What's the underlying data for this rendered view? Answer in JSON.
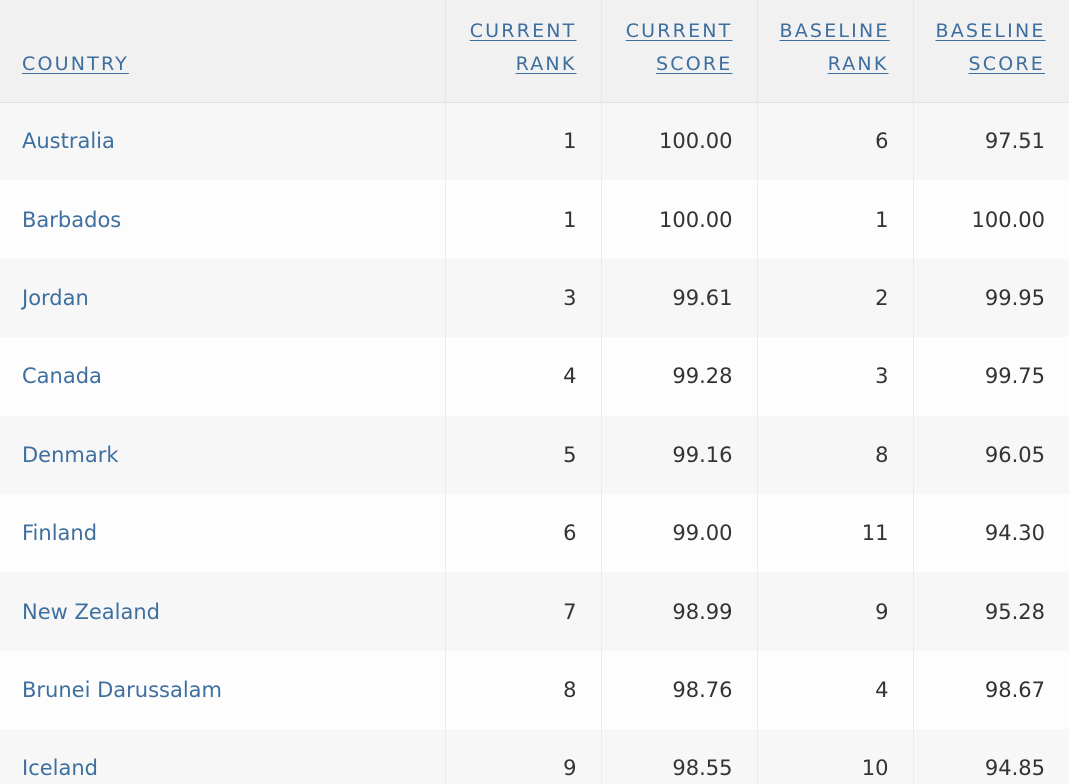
{
  "table": {
    "headers": {
      "country": "COUNTRY",
      "current_rank_l1": "CURRENT",
      "current_rank_l2": "RANK",
      "current_score_l1": "CURRENT",
      "current_score_l2": "SCORE",
      "baseline_rank_l1": "BASELINE",
      "baseline_rank_l2": "RANK",
      "baseline_score_l1": "BASELINE",
      "baseline_score_l2": "SCORE"
    },
    "rows": [
      {
        "country": "Australia",
        "current_rank": "1",
        "current_score": "100.00",
        "baseline_rank": "6",
        "baseline_score": "97.51"
      },
      {
        "country": "Barbados",
        "current_rank": "1",
        "current_score": "100.00",
        "baseline_rank": "1",
        "baseline_score": "100.00"
      },
      {
        "country": "Jordan",
        "current_rank": "3",
        "current_score": "99.61",
        "baseline_rank": "2",
        "baseline_score": "99.95"
      },
      {
        "country": "Canada",
        "current_rank": "4",
        "current_score": "99.28",
        "baseline_rank": "3",
        "baseline_score": "99.75"
      },
      {
        "country": "Denmark",
        "current_rank": "5",
        "current_score": "99.16",
        "baseline_rank": "8",
        "baseline_score": "96.05"
      },
      {
        "country": "Finland",
        "current_rank": "6",
        "current_score": "99.00",
        "baseline_rank": "11",
        "baseline_score": "94.30"
      },
      {
        "country": "New Zealand",
        "current_rank": "7",
        "current_score": "98.99",
        "baseline_rank": "9",
        "baseline_score": "95.28"
      },
      {
        "country": "Brunei Darussalam",
        "current_rank": "8",
        "current_score": "98.76",
        "baseline_rank": "4",
        "baseline_score": "98.67"
      },
      {
        "country": "Iceland",
        "current_rank": "9",
        "current_score": "98.55",
        "baseline_rank": "10",
        "baseline_score": "94.85"
      }
    ]
  }
}
